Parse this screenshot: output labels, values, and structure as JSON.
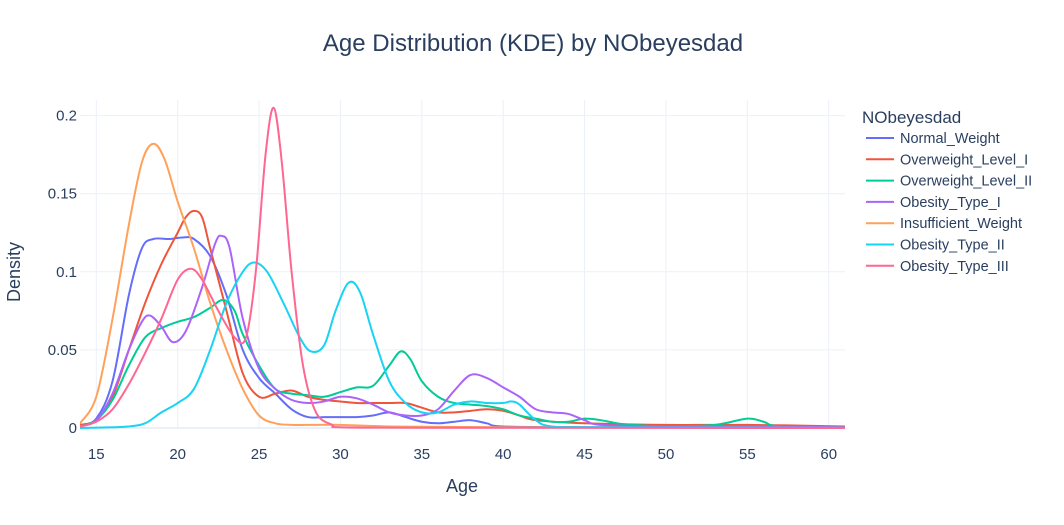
{
  "chart_data": {
    "type": "line",
    "title": "Age Distribution (KDE) by NObeyesdad",
    "xlabel": "Age",
    "ylabel": "Density",
    "xlim": [
      14,
      61
    ],
    "ylim": [
      0,
      0.21
    ],
    "xticks": [
      15,
      20,
      25,
      30,
      35,
      40,
      45,
      50,
      55,
      60
    ],
    "xtick_labels": [
      "15",
      "20",
      "25",
      "30",
      "35",
      "40",
      "45",
      "50",
      "55",
      "60"
    ],
    "yticks": [
      0,
      0.05,
      0.1,
      0.15,
      0.2
    ],
    "ytick_labels": [
      "0",
      "0.05",
      "0.1",
      "0.15",
      "0.2"
    ],
    "grid": true,
    "legend_title": "NObeyesdad",
    "legend_position": "right",
    "series": [
      {
        "name": "Normal_Weight",
        "color": "#636efa",
        "points": [
          [
            14,
            0.002
          ],
          [
            15,
            0.006
          ],
          [
            16,
            0.03
          ],
          [
            17,
            0.085
          ],
          [
            17.8,
            0.115
          ],
          [
            18.5,
            0.121
          ],
          [
            19.5,
            0.121
          ],
          [
            20.3,
            0.122
          ],
          [
            21,
            0.121
          ],
          [
            22,
            0.11
          ],
          [
            23,
            0.085
          ],
          [
            24,
            0.05
          ],
          [
            25,
            0.032
          ],
          [
            26,
            0.022
          ],
          [
            27,
            0.012
          ],
          [
            28,
            0.007
          ],
          [
            29,
            0.007
          ],
          [
            30,
            0.007
          ],
          [
            31,
            0.007
          ],
          [
            32,
            0.008
          ],
          [
            33,
            0.01
          ],
          [
            34,
            0.007
          ],
          [
            35,
            0.004
          ],
          [
            36,
            0.003
          ],
          [
            37,
            0.004
          ],
          [
            38,
            0.005
          ],
          [
            39,
            0.003
          ],
          [
            40,
            0.001
          ],
          [
            45,
            0.0005
          ],
          [
            50,
            0.0005
          ],
          [
            55,
            0.0003
          ],
          [
            61,
            0.0002
          ]
        ]
      },
      {
        "name": "Overweight_Level_I",
        "color": "#ef553b",
        "points": [
          [
            14,
            0.002
          ],
          [
            15,
            0.005
          ],
          [
            16,
            0.02
          ],
          [
            17,
            0.05
          ],
          [
            18,
            0.08
          ],
          [
            19,
            0.105
          ],
          [
            20,
            0.125
          ],
          [
            20.5,
            0.135
          ],
          [
            21,
            0.139
          ],
          [
            21.5,
            0.135
          ],
          [
            22,
            0.115
          ],
          [
            23,
            0.075
          ],
          [
            24,
            0.035
          ],
          [
            25,
            0.02
          ],
          [
            26,
            0.022
          ],
          [
            27,
            0.024
          ],
          [
            28,
            0.02
          ],
          [
            29,
            0.018
          ],
          [
            30,
            0.017
          ],
          [
            31,
            0.016
          ],
          [
            32,
            0.016
          ],
          [
            33,
            0.016
          ],
          [
            34,
            0.016
          ],
          [
            35,
            0.013
          ],
          [
            36,
            0.01
          ],
          [
            37,
            0.01
          ],
          [
            38,
            0.011
          ],
          [
            39,
            0.012
          ],
          [
            40,
            0.011
          ],
          [
            41,
            0.008
          ],
          [
            42,
            0.005
          ],
          [
            45,
            0.003
          ],
          [
            50,
            0.002
          ],
          [
            55,
            0.002
          ],
          [
            61,
            0.001
          ]
        ]
      },
      {
        "name": "Overweight_Level_II",
        "color": "#00cc96",
        "points": [
          [
            14,
            0.001
          ],
          [
            15,
            0.005
          ],
          [
            16,
            0.018
          ],
          [
            17,
            0.04
          ],
          [
            18,
            0.058
          ],
          [
            19,
            0.064
          ],
          [
            20,
            0.068
          ],
          [
            21,
            0.071
          ],
          [
            22,
            0.077
          ],
          [
            22.8,
            0.082
          ],
          [
            23.5,
            0.075
          ],
          [
            24,
            0.06
          ],
          [
            25,
            0.04
          ],
          [
            26,
            0.025
          ],
          [
            27,
            0.022
          ],
          [
            28,
            0.021
          ],
          [
            29,
            0.02
          ],
          [
            30,
            0.023
          ],
          [
            31,
            0.026
          ],
          [
            32,
            0.027
          ],
          [
            33,
            0.04
          ],
          [
            33.7,
            0.049
          ],
          [
            34.3,
            0.044
          ],
          [
            35,
            0.03
          ],
          [
            36,
            0.02
          ],
          [
            37,
            0.016
          ],
          [
            38,
            0.015
          ],
          [
            39,
            0.014
          ],
          [
            40,
            0.012
          ],
          [
            41,
            0.008
          ],
          [
            42,
            0.006
          ],
          [
            43,
            0.004
          ],
          [
            44,
            0.004
          ],
          [
            45,
            0.006
          ],
          [
            46,
            0.005
          ],
          [
            47,
            0.003
          ],
          [
            48,
            0.002
          ],
          [
            50,
            0.001
          ],
          [
            53,
            0.002
          ],
          [
            55,
            0.006
          ],
          [
            56,
            0.004
          ],
          [
            57,
            0.001
          ],
          [
            61,
            0.0005
          ]
        ]
      },
      {
        "name": "Obesity_Type_I",
        "color": "#ab63fa",
        "points": [
          [
            14,
            0.001
          ],
          [
            15,
            0.005
          ],
          [
            16,
            0.022
          ],
          [
            17,
            0.05
          ],
          [
            17.8,
            0.068
          ],
          [
            18.3,
            0.072
          ],
          [
            19,
            0.065
          ],
          [
            19.7,
            0.055
          ],
          [
            20.5,
            0.062
          ],
          [
            21.5,
            0.09
          ],
          [
            22.3,
            0.118
          ],
          [
            22.7,
            0.123
          ],
          [
            23.2,
            0.115
          ],
          [
            24,
            0.07
          ],
          [
            25,
            0.038
          ],
          [
            26,
            0.025
          ],
          [
            27,
            0.018
          ],
          [
            28,
            0.016
          ],
          [
            29,
            0.017
          ],
          [
            30,
            0.02
          ],
          [
            31,
            0.019
          ],
          [
            32,
            0.015
          ],
          [
            33,
            0.01
          ],
          [
            34,
            0.008
          ],
          [
            35,
            0.008
          ],
          [
            36,
            0.012
          ],
          [
            37,
            0.024
          ],
          [
            38,
            0.034
          ],
          [
            39,
            0.032
          ],
          [
            40,
            0.026
          ],
          [
            41,
            0.02
          ],
          [
            42,
            0.012
          ],
          [
            43,
            0.01
          ],
          [
            44,
            0.009
          ],
          [
            45,
            0.005
          ],
          [
            46,
            0.002
          ],
          [
            50,
            0.001
          ],
          [
            55,
            0.001
          ],
          [
            61,
            0.0005
          ]
        ]
      },
      {
        "name": "Insufficient_Weight",
        "color": "#ffa15a",
        "points": [
          [
            14,
            0.003
          ],
          [
            15,
            0.02
          ],
          [
            16,
            0.07
          ],
          [
            17,
            0.13
          ],
          [
            17.8,
            0.17
          ],
          [
            18.5,
            0.182
          ],
          [
            19.2,
            0.172
          ],
          [
            20,
            0.145
          ],
          [
            21,
            0.115
          ],
          [
            22,
            0.08
          ],
          [
            23,
            0.05
          ],
          [
            24,
            0.025
          ],
          [
            25,
            0.008
          ],
          [
            26,
            0.003
          ],
          [
            27,
            0.002
          ],
          [
            28,
            0.002
          ],
          [
            30,
            0.002
          ],
          [
            33,
            0.001
          ],
          [
            40,
            0.0005
          ],
          [
            61,
            0.0001
          ]
        ]
      },
      {
        "name": "Obesity_Type_II",
        "color": "#19d3f3",
        "points": [
          [
            14,
            0
          ],
          [
            16,
            0.0005
          ],
          [
            17,
            0.001
          ],
          [
            18,
            0.003
          ],
          [
            19,
            0.01
          ],
          [
            20,
            0.016
          ],
          [
            21,
            0.025
          ],
          [
            22,
            0.05
          ],
          [
            23,
            0.08
          ],
          [
            24,
            0.1
          ],
          [
            24.7,
            0.106
          ],
          [
            25.5,
            0.1
          ],
          [
            26.5,
            0.08
          ],
          [
            27.5,
            0.058
          ],
          [
            28.2,
            0.049
          ],
          [
            29,
            0.053
          ],
          [
            29.7,
            0.075
          ],
          [
            30.5,
            0.093
          ],
          [
            31.2,
            0.087
          ],
          [
            32,
            0.06
          ],
          [
            33,
            0.03
          ],
          [
            34,
            0.016
          ],
          [
            35,
            0.01
          ],
          [
            36,
            0.01
          ],
          [
            37,
            0.015
          ],
          [
            38,
            0.017
          ],
          [
            39,
            0.016
          ],
          [
            40,
            0.016
          ],
          [
            40.5,
            0.017
          ],
          [
            41,
            0.015
          ],
          [
            42,
            0.005
          ],
          [
            43,
            0.001
          ],
          [
            46,
            0.0005
          ],
          [
            61,
            0
          ]
        ]
      },
      {
        "name": "Obesity_Type_III",
        "color": "#ff6692",
        "points": [
          [
            14,
            0.001
          ],
          [
            15,
            0.004
          ],
          [
            16,
            0.012
          ],
          [
            17,
            0.028
          ],
          [
            18,
            0.048
          ],
          [
            19,
            0.07
          ],
          [
            20,
            0.095
          ],
          [
            20.8,
            0.102
          ],
          [
            21.5,
            0.095
          ],
          [
            22.5,
            0.075
          ],
          [
            23.5,
            0.058
          ],
          [
            24.2,
            0.058
          ],
          [
            24.8,
            0.1
          ],
          [
            25.4,
            0.175
          ],
          [
            25.9,
            0.205
          ],
          [
            26.4,
            0.17
          ],
          [
            27,
            0.1
          ],
          [
            27.7,
            0.04
          ],
          [
            28.5,
            0.01
          ],
          [
            29.5,
            0.002
          ],
          [
            30,
            0.0005
          ],
          [
            35,
            0.0002
          ],
          [
            61,
            0
          ]
        ]
      }
    ]
  }
}
